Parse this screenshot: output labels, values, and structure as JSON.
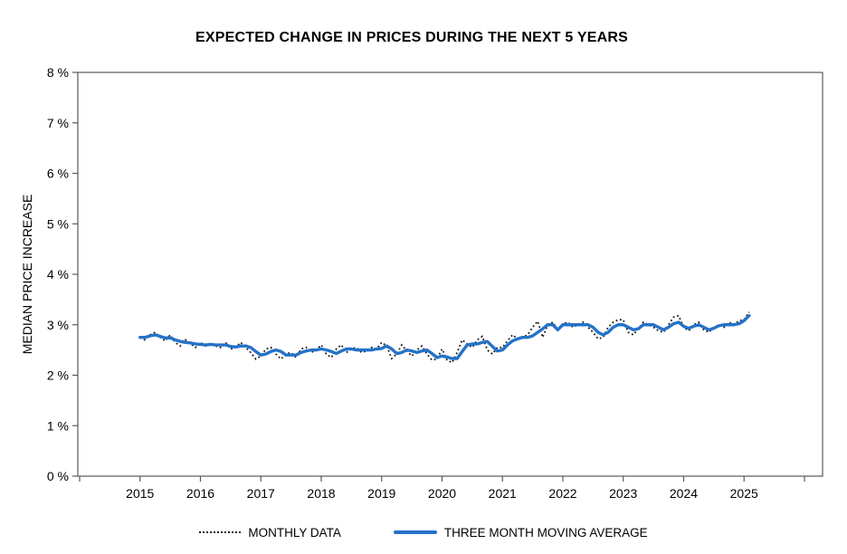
{
  "chart_data": {
    "type": "line",
    "title": "EXPECTED CHANGE IN PRICES DURING THE NEXT 5 YEARS",
    "ylabel": "MEDIAN PRICE INCREASE",
    "xlabel": "",
    "ylim": [
      0,
      8
    ],
    "xlim": [
      2013.97,
      2026.3
    ],
    "grid": false,
    "legend_position": "bottom",
    "axis_color": "#595959",
    "tick_label_color": "#000000",
    "y_ticks": [
      {
        "value": 8,
        "label": "8 %"
      },
      {
        "value": 7,
        "label": "7 %"
      },
      {
        "value": 6,
        "label": "6 %"
      },
      {
        "value": 5,
        "label": "5 %"
      },
      {
        "value": 4,
        "label": "4 %"
      },
      {
        "value": 3,
        "label": "3 %"
      },
      {
        "value": 2,
        "label": "2 %"
      },
      {
        "value": 1,
        "label": "1 %"
      },
      {
        "value": 0,
        "label": "0 %"
      }
    ],
    "x_ticks": [
      {
        "value": 2014,
        "label": ""
      },
      {
        "value": 2015,
        "label": "2015"
      },
      {
        "value": 2016,
        "label": "2016"
      },
      {
        "value": 2017,
        "label": "2017"
      },
      {
        "value": 2018,
        "label": "2018"
      },
      {
        "value": 2019,
        "label": "2019"
      },
      {
        "value": 2020,
        "label": "2020"
      },
      {
        "value": 2021,
        "label": "2021"
      },
      {
        "value": 2022,
        "label": "2022"
      },
      {
        "value": 2023,
        "label": "2023"
      },
      {
        "value": 2024,
        "label": "2024"
      },
      {
        "value": 2025,
        "label": "2025"
      },
      {
        "value": 2026,
        "label": ""
      }
    ],
    "series_start": {
      "year": 2015,
      "month": 1
    },
    "frequency": "monthly",
    "series": [
      {
        "name": "MONTHLY DATA",
        "style": "dotted",
        "color": "#1a1a1a",
        "values": [
          2.75,
          2.7,
          2.8,
          2.85,
          2.75,
          2.68,
          2.8,
          2.65,
          2.58,
          2.7,
          2.63,
          2.55,
          2.65,
          2.58,
          2.63,
          2.58,
          2.55,
          2.65,
          2.52,
          2.55,
          2.65,
          2.55,
          2.45,
          2.32,
          2.38,
          2.52,
          2.55,
          2.42,
          2.32,
          2.42,
          2.45,
          2.35,
          2.52,
          2.55,
          2.45,
          2.5,
          2.6,
          2.42,
          2.35,
          2.52,
          2.6,
          2.45,
          2.52,
          2.55,
          2.45,
          2.48,
          2.55,
          2.52,
          2.65,
          2.58,
          2.33,
          2.42,
          2.6,
          2.48,
          2.38,
          2.5,
          2.58,
          2.42,
          2.3,
          2.32,
          2.52,
          2.3,
          2.25,
          2.45,
          2.7,
          2.62,
          2.55,
          2.7,
          2.77,
          2.5,
          2.42,
          2.55,
          2.55,
          2.68,
          2.8,
          2.72,
          2.75,
          2.8,
          2.95,
          3.07,
          2.75,
          3.0,
          3.05,
          2.9,
          3.02,
          3.05,
          2.95,
          3.0,
          3.05,
          2.95,
          2.85,
          2.72,
          2.75,
          2.95,
          3.05,
          3.1,
          3.1,
          2.85,
          2.8,
          2.92,
          3.05,
          3.0,
          2.95,
          2.88,
          2.85,
          3.0,
          3.15,
          3.18,
          2.95,
          2.88,
          3.0,
          3.05,
          2.9,
          2.85,
          2.95,
          3.0,
          2.95,
          3.05,
          3.0,
          3.08,
          3.1,
          3.25
        ]
      },
      {
        "name": "THREE MONTH MOVING AVERAGE",
        "style": "solid",
        "color": "#2472C8",
        "values": [
          2.75,
          2.75,
          2.78,
          2.8,
          2.77,
          2.74,
          2.74,
          2.7,
          2.67,
          2.65,
          2.64,
          2.62,
          2.61,
          2.6,
          2.61,
          2.6,
          2.6,
          2.6,
          2.57,
          2.56,
          2.58,
          2.58,
          2.55,
          2.47,
          2.4,
          2.42,
          2.47,
          2.5,
          2.47,
          2.4,
          2.4,
          2.4,
          2.45,
          2.48,
          2.5,
          2.5,
          2.52,
          2.5,
          2.47,
          2.43,
          2.48,
          2.52,
          2.52,
          2.5,
          2.5,
          2.5,
          2.5,
          2.52,
          2.53,
          2.58,
          2.52,
          2.43,
          2.45,
          2.5,
          2.48,
          2.45,
          2.48,
          2.5,
          2.43,
          2.35,
          2.38,
          2.36,
          2.33,
          2.33,
          2.47,
          2.6,
          2.62,
          2.62,
          2.65,
          2.67,
          2.57,
          2.48,
          2.5,
          2.6,
          2.68,
          2.72,
          2.75,
          2.75,
          2.78,
          2.85,
          2.92,
          3.0,
          3.0,
          2.9,
          3.0,
          3.0,
          3.0,
          3.0,
          3.0,
          3.0,
          2.95,
          2.85,
          2.8,
          2.85,
          2.95,
          3.0,
          3.0,
          2.95,
          2.9,
          2.92,
          3.0,
          3.0,
          3.0,
          2.95,
          2.9,
          2.95,
          3.02,
          3.05,
          2.97,
          2.93,
          2.97,
          3.0,
          2.95,
          2.9,
          2.93,
          2.98,
          3.0,
          3.0,
          3.0,
          3.02,
          3.08,
          3.18
        ]
      }
    ]
  }
}
